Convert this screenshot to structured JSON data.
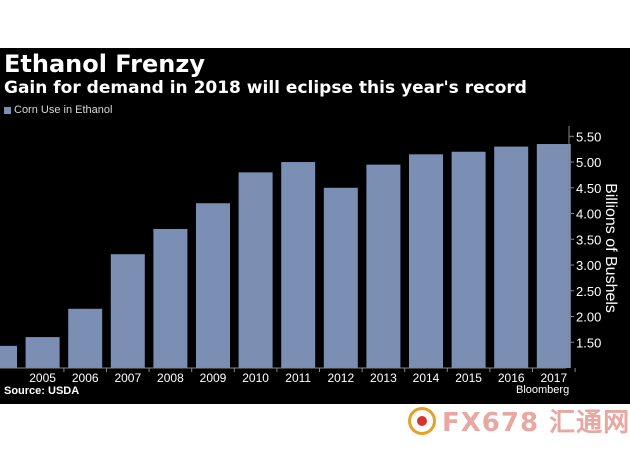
{
  "chart_data": {
    "type": "bar",
    "title": "Ethanol Frenzy",
    "subtitle": "Gain for demand in 2018 will eclipse this year's record",
    "legend": [
      {
        "name": "Corn Use in Ethanol",
        "color": "#7a8fb3"
      }
    ],
    "legend_position": "top-left",
    "ylabel": "Billions of Bushels",
    "y_axis_position": "right",
    "ylim": [
      1.0,
      5.7
    ],
    "yticks": [
      "1.50",
      "2.00",
      "2.50",
      "3.00",
      "3.50",
      "4.00",
      "4.50",
      "5.00",
      "5.50"
    ],
    "categories": [
      "",
      "2005",
      "2006",
      "2007",
      "2008",
      "2009",
      "2010",
      "2011",
      "2012",
      "2013",
      "2014",
      "2015",
      "2016",
      "2017"
    ],
    "series": [
      {
        "name": "Corn Use in Ethanol",
        "values": [
          1.43,
          1.6,
          2.15,
          3.21,
          3.7,
          4.2,
          4.8,
          5.0,
          4.5,
          4.95,
          5.15,
          5.2,
          5.3,
          5.35
        ]
      }
    ],
    "grid": false,
    "bar_color": "#7a8fb3",
    "background": "#000000",
    "source": "Source: USDA",
    "brand": "Bloomberg"
  },
  "watermark": {
    "text": "FX678 汇通网"
  }
}
